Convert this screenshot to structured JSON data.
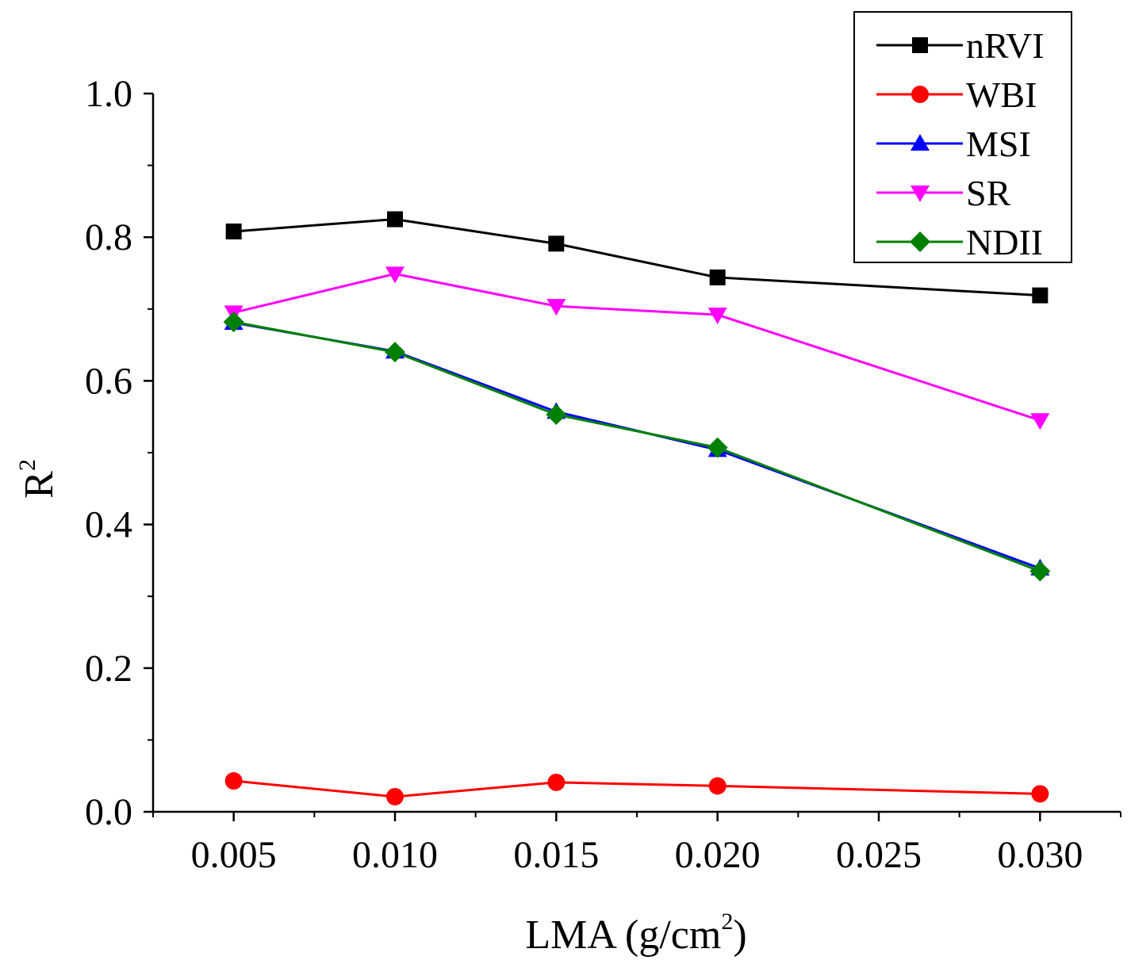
{
  "chart_data": {
    "type": "line",
    "title": "",
    "xlabel": "LMA (g/cm",
    "xlabel_sup": "2",
    "xlabel_close": ")",
    "ylabel": "R",
    "ylabel_sup": "2",
    "xlim": [
      0.0025,
      0.0325
    ],
    "ylim": [
      0.0,
      1.0
    ],
    "x_ticks": [
      {
        "value": 0.005,
        "label": "0.005"
      },
      {
        "value": 0.01,
        "label": "0.010"
      },
      {
        "value": 0.015,
        "label": "0.015"
      },
      {
        "value": 0.02,
        "label": "0.020"
      },
      {
        "value": 0.025,
        "label": "0.025"
      },
      {
        "value": 0.03,
        "label": "0.030"
      }
    ],
    "y_ticks": [
      {
        "value": 0.0,
        "label": "0.0"
      },
      {
        "value": 0.2,
        "label": "0.2"
      },
      {
        "value": 0.4,
        "label": "0.4"
      },
      {
        "value": 0.6,
        "label": "0.6"
      },
      {
        "value": 0.8,
        "label": "0.8"
      },
      {
        "value": 1.0,
        "label": "1.0"
      }
    ],
    "legend_position": "top-right",
    "grid": false,
    "x": [
      0.005,
      0.01,
      0.015,
      0.02,
      0.03
    ],
    "series": [
      {
        "name": "nRVI",
        "color": "#000000",
        "marker": "square",
        "values": [
          0.808,
          0.825,
          0.791,
          0.744,
          0.719
        ]
      },
      {
        "name": "WBI",
        "color": "#ff0000",
        "marker": "circle",
        "values": [
          0.043,
          0.021,
          0.041,
          0.036,
          0.025
        ]
      },
      {
        "name": "MSI",
        "color": "#0000ff",
        "marker": "triangle-up",
        "values": [
          0.681,
          0.641,
          0.557,
          0.504,
          0.339
        ]
      },
      {
        "name": "SR",
        "color": "#ff00ff",
        "marker": "triangle-down",
        "values": [
          0.695,
          0.749,
          0.704,
          0.692,
          0.545
        ]
      },
      {
        "name": "NDII",
        "color": "#008000",
        "marker": "diamond",
        "values": [
          0.682,
          0.64,
          0.553,
          0.507,
          0.335
        ]
      }
    ]
  }
}
